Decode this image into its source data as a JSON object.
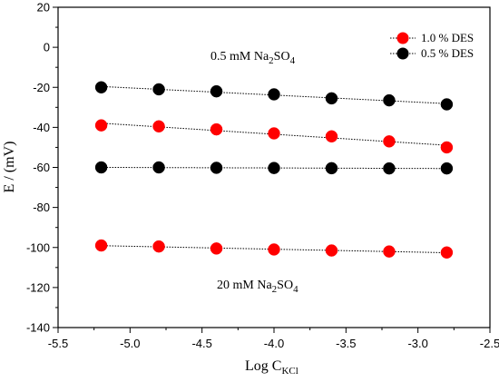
{
  "chart_data": {
    "type": "scatter",
    "title": "",
    "xlabel": {
      "main": "Log C",
      "sub": "KCl"
    },
    "ylabel": "E / (mV)",
    "xlim": [
      -5.5,
      -2.5
    ],
    "ylim": [
      -140,
      20
    ],
    "xticks": [
      -5.5,
      -5.0,
      -4.5,
      -4.0,
      -3.5,
      -3.0,
      -2.5
    ],
    "xtick_labels": [
      "-5.5",
      "-5.0",
      "-4.5",
      "-4.0",
      "-3.5",
      "-3.0",
      "-2.5"
    ],
    "yticks": [
      20,
      0,
      -20,
      -40,
      -60,
      -80,
      -100,
      -120,
      -140
    ],
    "ytick_labels": [
      "20",
      "0",
      "-20",
      "-40",
      "-60",
      "-80",
      "-100",
      "-120",
      "-140"
    ],
    "grid": false,
    "legend_position": "top-right",
    "legend": [
      {
        "label": "1.0 % DES",
        "color": "#ff0000"
      },
      {
        "label": "0.5 % DES",
        "color": "#000000"
      }
    ],
    "series": [
      {
        "color": "#000000",
        "x": [
          -5.2,
          -4.8,
          -4.4,
          -4.0,
          -3.6,
          -3.2,
          -2.8
        ],
        "y": [
          -20,
          -21,
          -22,
          -23.5,
          -25.5,
          -26.5,
          -28.5
        ]
      },
      {
        "color": "#ff0000",
        "x": [
          -5.2,
          -4.8,
          -4.4,
          -4.0,
          -3.6,
          -3.2,
          -2.8
        ],
        "y": [
          -39,
          -39.5,
          -41,
          -43,
          -44.5,
          -47,
          -50
        ]
      },
      {
        "color": "#000000",
        "x": [
          -5.2,
          -4.8,
          -4.4,
          -4.0,
          -3.6,
          -3.2,
          -2.8
        ],
        "y": [
          -60,
          -60,
          -60.2,
          -60.3,
          -60.4,
          -60.5,
          -60.5
        ]
      },
      {
        "color": "#ff0000",
        "x": [
          -5.2,
          -4.8,
          -4.4,
          -4.0,
          -3.6,
          -3.2,
          -2.8
        ],
        "y": [
          -99,
          -99.5,
          -100.5,
          -101,
          -101.5,
          -102,
          -102.5
        ]
      }
    ],
    "annotations": [
      {
        "text": "0.5 mM Na",
        "sub": "2",
        "after": "SO",
        "sub2": "4",
        "anchor_x": -4.88,
        "anchor_y": -4
      },
      {
        "text": "20 mM Na",
        "sub": "2",
        "after": "SO",
        "sub2": "4",
        "anchor_x": -4.88,
        "anchor_y": -120
      }
    ]
  }
}
